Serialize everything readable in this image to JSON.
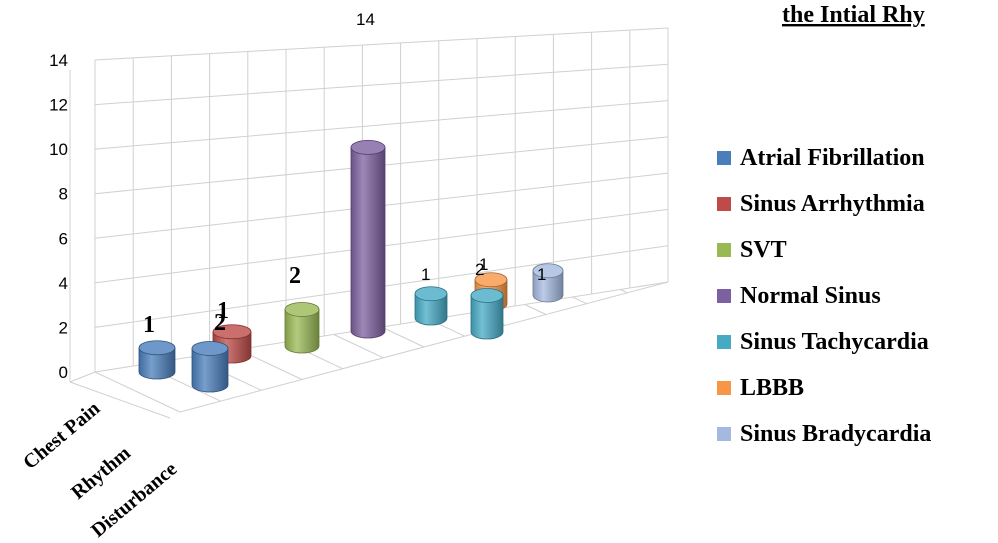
{
  "chart_data": {
    "type": "bar",
    "style": "3d-cylinder",
    "title": "the Intial Rhy",
    "categories": [
      "Chest Pain",
      "Rhythm Disturbance"
    ],
    "ylim": [
      0,
      14
    ],
    "yticks": [
      "0",
      "2",
      "4",
      "6",
      "8",
      "10",
      "12",
      "14"
    ],
    "grid": true,
    "legend_position": "right",
    "series": [
      {
        "name": "Atrial Fibrillation",
        "color": "#4a7ebb",
        "values": [
          1,
          2
        ]
      },
      {
        "name": "Sinus Arrhythmia",
        "color": "#be4b48",
        "values": [
          null,
          1
        ]
      },
      {
        "name": "SVT",
        "color": "#98b954",
        "values": [
          2,
          null
        ]
      },
      {
        "name": "Normal Sinus",
        "color": "#7d60a0",
        "values": [
          14,
          null
        ]
      },
      {
        "name": "Sinus Tachycardia",
        "color": "#46aac5",
        "values": [
          1,
          2
        ]
      },
      {
        "name": "LBBB",
        "color": "#f79646",
        "values": [
          null,
          1
        ]
      },
      {
        "name": "Sinus Bradycardia",
        "color": "#a5b9e0",
        "values": [
          1,
          null
        ]
      }
    ],
    "data_labels": [
      {
        "series": 0,
        "category": 0,
        "text": "1",
        "style": "bold"
      },
      {
        "series": 0,
        "category": 1,
        "text": "2",
        "style": "bold"
      },
      {
        "series": 1,
        "category": 1,
        "text": "1",
        "style": "bold"
      },
      {
        "series": 2,
        "category": 0,
        "text": "2",
        "style": "bold"
      },
      {
        "series": 3,
        "category": 0,
        "text": "14",
        "style": "plain"
      },
      {
        "series": 4,
        "category": 0,
        "text": "1",
        "style": "plain"
      },
      {
        "series": 4,
        "category": 1,
        "text": "2",
        "style": "plain"
      },
      {
        "series": 5,
        "category": 1,
        "text": "1",
        "style": "plain"
      },
      {
        "series": 6,
        "category": 0,
        "text": "1",
        "style": "plain"
      }
    ]
  }
}
